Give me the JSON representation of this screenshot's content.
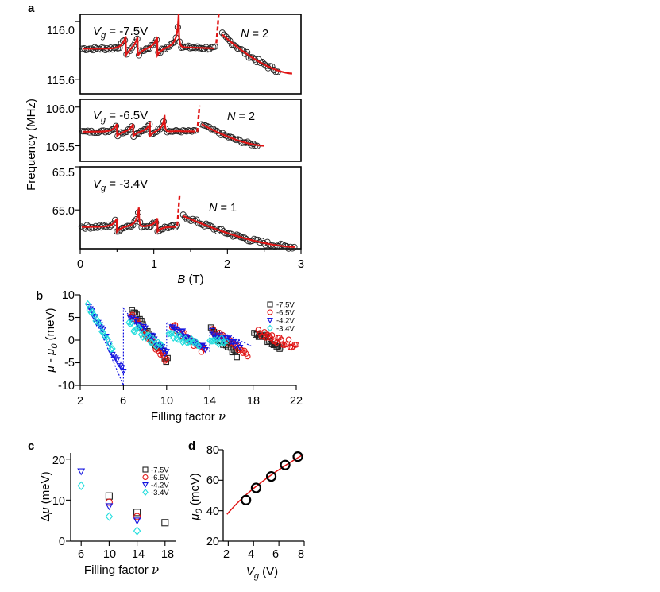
{
  "panel_labels": {
    "a": "a",
    "b": "b",
    "c": "c",
    "d": "d"
  },
  "chart_data": [
    {
      "type": "scatter",
      "panel": "a",
      "ylabel": "Frequency (MHz)",
      "xlabel_symbol": "B",
      "xlabel_unit": "(T)",
      "xlim": [
        0,
        3
      ],
      "xticks": [
        "0",
        "1",
        "2",
        "3"
      ],
      "subplots": [
        {
          "vg_label": "V",
          "vg_sub": "g",
          "vg_value": " = -7.5V",
          "n_label": "N",
          "n_value": " = 2",
          "ylim": [
            115.5,
            116.05
          ],
          "yticks": [
            {
              "v": 116.0,
              "t": "116.0"
            },
            {
              "v": 115.6,
              "t": "115.6"
            }
          ],
          "baseline": 115.81,
          "noise": 0.012,
          "peak_height": 0.085,
          "peaks": [
            0.62,
            0.78,
            1.05,
            1.34
          ],
          "sharp_peak": 1.34,
          "sharp_height": 0.19,
          "dash_x": 1.86,
          "dash_range": [
            115.85,
            116.05
          ],
          "high_start": 1.93,
          "high_end": 2.7,
          "high_from": 115.91,
          "high_to": 115.66,
          "fit_end": 2.88,
          "fit_end_y": 115.64,
          "x_start": 0.03,
          "x_gap": 1.84
        },
        {
          "vg_label": "V",
          "vg_sub": "g",
          "vg_value": " = -6.5V",
          "n_label": "N",
          "n_value": " = 2",
          "ylim": [
            105.3,
            106.1
          ],
          "yticks": [
            {
              "v": 106.0,
              "t": "106.0"
            },
            {
              "v": 105.5,
              "t": "105.5"
            }
          ],
          "baseline": 105.68,
          "noise": 0.015,
          "peak_height": 0.1,
          "peaks": [
            0.5,
            0.72,
            0.95,
            1.15
          ],
          "sharp_peak": 1.15,
          "sharp_height": 0.17,
          "dash_x": 1.6,
          "dash_range": [
            105.68,
            106.02
          ],
          "high_start": 1.65,
          "high_end": 2.42,
          "high_from": 105.78,
          "high_to": 105.47,
          "fit_end": 2.5,
          "fit_end_y": 105.5,
          "x_start": 0.03,
          "x_gap": 1.58
        },
        {
          "vg_label": "V",
          "vg_sub": "g",
          "vg_value": " = -3.4V",
          "n_label": "N",
          "n_value": " = 1",
          "ylim": [
            64.55,
            65.5
          ],
          "yticks": [
            {
              "v": 65.5,
              "t": "65.5"
            },
            {
              "v": 65.0,
              "t": "65.0"
            }
          ],
          "baseline": 64.8,
          "noise": 0.02,
          "peak_height": 0.1,
          "peaks": [
            0.5,
            0.8,
            1.05
          ],
          "sharp_peak": 0.8,
          "sharp_height": 0.18,
          "dash_x": 1.33,
          "dash_range": [
            64.82,
            65.18
          ],
          "high_start": 1.4,
          "high_end": 2.92,
          "high_from": 64.93,
          "high_to": 64.57,
          "fit_end": 2.92,
          "fit_end_y": 64.57,
          "x_start": 0.02,
          "x_gap": 1.32
        }
      ]
    },
    {
      "type": "scatter",
      "panel": "b",
      "ylabel_mu": "μ",
      "ylabel_dash": " - ",
      "ylabel_mu0": "μ",
      "ylabel_sub": "0",
      "ylabel_unit": " (meV)",
      "xlabel": "Filling factor ",
      "xlabel_nu": "ν",
      "xlim": [
        2,
        22
      ],
      "ylim": [
        -10,
        10
      ],
      "xticks": [
        "2",
        "6",
        "10",
        "14",
        "18",
        "22"
      ],
      "yticks": [
        "10",
        "5",
        "0",
        "-5",
        "-10"
      ],
      "series": [
        {
          "name": "-7.5V",
          "color": "#222222",
          "marker": "square",
          "segments": [
            [
              6.8,
              10.1,
              7,
              -4.5
            ],
            [
              14.1,
              16.5,
              2,
              -3
            ],
            [
              18.1,
              20.6,
              2,
              -1.5
            ]
          ]
        },
        {
          "name": "-6.5V",
          "color": "#e01414",
          "marker": "circle",
          "segments": [
            [
              6.7,
              10,
              5.5,
              -4.5
            ],
            [
              10.5,
              13.5,
              3.5,
              -2.5
            ],
            [
              14.3,
              17.5,
              1.8,
              -2.8
            ],
            [
              18.5,
              22,
              1.5,
              -1.2
            ]
          ]
        },
        {
          "name": "-4.2V",
          "color": "#1414e0",
          "marker": "triangle-down",
          "segments": [
            [
              2.8,
              6,
              8,
              -7.5
            ],
            [
              6.6,
              10,
              5.5,
              -3
            ],
            [
              10.5,
              13.6,
              2.5,
              -1.5
            ],
            [
              14.2,
              16.8,
              1.8,
              -1.2
            ]
          ]
        },
        {
          "name": "-3.4V",
          "color": "#22dddd",
          "marker": "diamond",
          "segments": [
            [
              2.7,
              5,
              8,
              -2.5
            ],
            [
              6.5,
              9.5,
              3.5,
              -1.5
            ],
            [
              10.2,
              13,
              1.5,
              -1
            ],
            [
              14,
              15.5,
              0.5,
              -0.5
            ]
          ]
        }
      ],
      "guide": [
        [
          2.8,
          8
        ],
        [
          6,
          -10
        ],
        [
          6,
          7
        ],
        [
          10,
          -5
        ],
        [
          10,
          4
        ],
        [
          14,
          -2.5
        ],
        [
          14,
          3
        ],
        [
          18,
          -1.5
        ]
      ]
    },
    {
      "type": "scatter",
      "panel": "c",
      "ylabel_delta": "Δ",
      "ylabel_mu": "μ",
      "ylabel_unit": " (meV)",
      "xlabel": "Filling factor ",
      "xlabel_nu": "ν",
      "xlim": [
        4.5,
        19.5
      ],
      "ylim": [
        0,
        21.5
      ],
      "xticks": [
        "6",
        "10",
        "14",
        "18"
      ],
      "yticks": [
        "20",
        "10",
        "0"
      ],
      "series": [
        {
          "name": "-7.5V",
          "color": "#222222",
          "marker": "square",
          "points": [
            [
              10,
              11
            ],
            [
              14,
              7
            ],
            [
              18,
              4.5
            ]
          ]
        },
        {
          "name": "-6.5V",
          "color": "#e01414",
          "marker": "circle",
          "points": [
            [
              10,
              9.5
            ],
            [
              14,
              6
            ]
          ]
        },
        {
          "name": "-4.2V",
          "color": "#1414e0",
          "marker": "triangle-down",
          "points": [
            [
              6,
              17
            ],
            [
              10,
              8.5
            ],
            [
              14,
              5
            ]
          ]
        },
        {
          "name": "-3.4V",
          "color": "#22dddd",
          "marker": "diamond",
          "points": [
            [
              6,
              13.5
            ],
            [
              10,
              6
            ],
            [
              14,
              2.5
            ]
          ]
        }
      ]
    },
    {
      "type": "scatter",
      "panel": "d",
      "ylabel_mu": "μ",
      "ylabel_sub": "0",
      "ylabel_unit": " (meV)",
      "xlabel_v": "V",
      "xlabel_sub": "g",
      "xlabel_unit": " (V)",
      "xlim": [
        1.6,
        8.0
      ],
      "ylim": [
        20,
        80
      ],
      "xticks": [
        "2",
        "4",
        "6",
        "8"
      ],
      "yticks": [
        "80",
        "60",
        "40",
        "20"
      ],
      "points": [
        [
          3.4,
          47
        ],
        [
          4.2,
          55
        ],
        [
          5.4,
          62.5
        ],
        [
          6.5,
          70
        ],
        [
          7.5,
          75.5
        ]
      ],
      "fit": {
        "color": "#e01414",
        "x_range": [
          1.9,
          7.95
        ],
        "coef": 27.3,
        "power": 0.5
      }
    }
  ]
}
